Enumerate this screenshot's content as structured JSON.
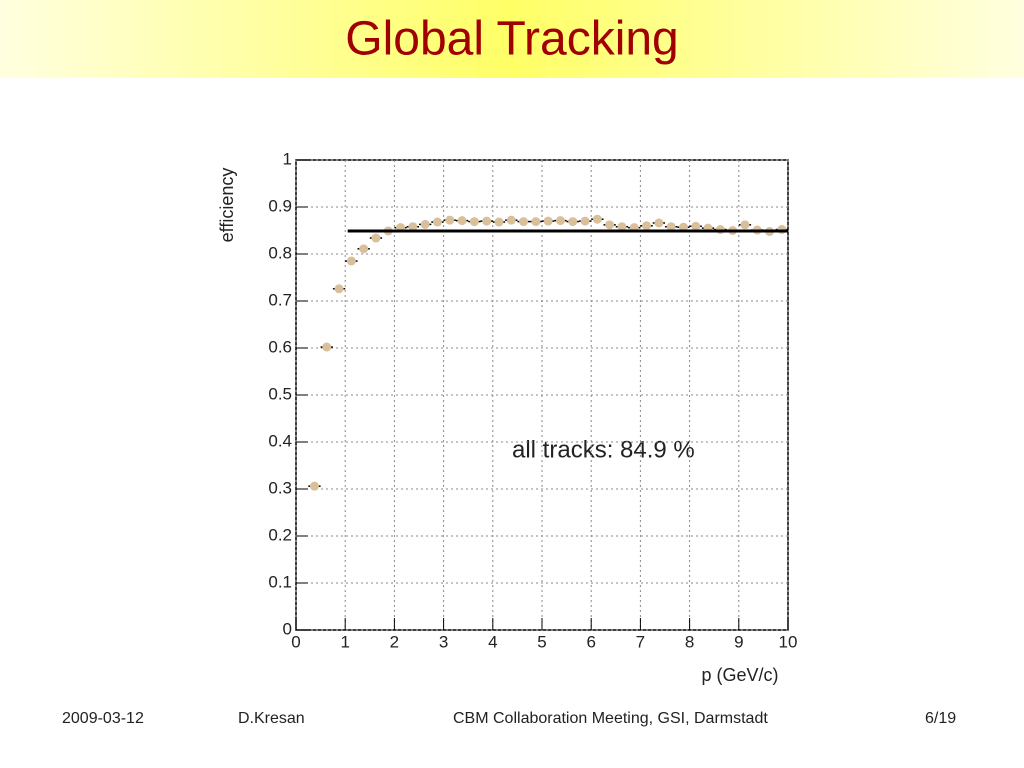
{
  "slide": {
    "title": "Global Tracking",
    "footer": [
      "2009-03-12",
      "D.Kresan",
      "CBM Collaboration Meeting, GSI, Darmstadt",
      "6/19"
    ]
  },
  "chart_data": {
    "type": "scatter",
    "x": [
      0.375,
      0.625,
      0.875,
      1.125,
      1.375,
      1.625,
      1.875,
      2.125,
      2.375,
      2.625,
      2.875,
      3.125,
      3.375,
      3.625,
      3.875,
      4.125,
      4.375,
      4.625,
      4.875,
      5.125,
      5.375,
      5.625,
      5.875,
      6.125,
      6.375,
      6.625,
      6.875,
      7.125,
      7.375,
      7.625,
      7.875,
      8.125,
      8.375,
      8.625,
      8.875,
      9.125,
      9.375,
      9.625,
      9.875
    ],
    "x_err": 0.125,
    "values": [
      0.306,
      0.602,
      0.726,
      0.785,
      0.811,
      0.834,
      0.849,
      0.856,
      0.858,
      0.863,
      0.868,
      0.872,
      0.871,
      0.869,
      0.87,
      0.868,
      0.872,
      0.869,
      0.869,
      0.87,
      0.871,
      0.869,
      0.87,
      0.874,
      0.862,
      0.858,
      0.856,
      0.86,
      0.866,
      0.858,
      0.857,
      0.859,
      0.855,
      0.852,
      0.85,
      0.862,
      0.851,
      0.848,
      0.852
    ],
    "color": "#d9bf9a",
    "fit": {
      "x": [
        1.05,
        10
      ],
      "y": 0.849,
      "color": "#000000"
    },
    "annotation": "all tracks: 84.9 %",
    "xlabel": "p (GeV/c)",
    "ylabel": "efficiency",
    "xlim": [
      0,
      10
    ],
    "ylim": [
      0,
      1
    ],
    "xticks": [
      0,
      1,
      2,
      3,
      4,
      5,
      6,
      7,
      8,
      9,
      10
    ],
    "yticks": [
      0,
      0.1,
      0.2,
      0.3,
      0.4,
      0.5,
      0.6,
      0.7,
      0.8,
      0.9,
      1
    ],
    "grid": true
  }
}
